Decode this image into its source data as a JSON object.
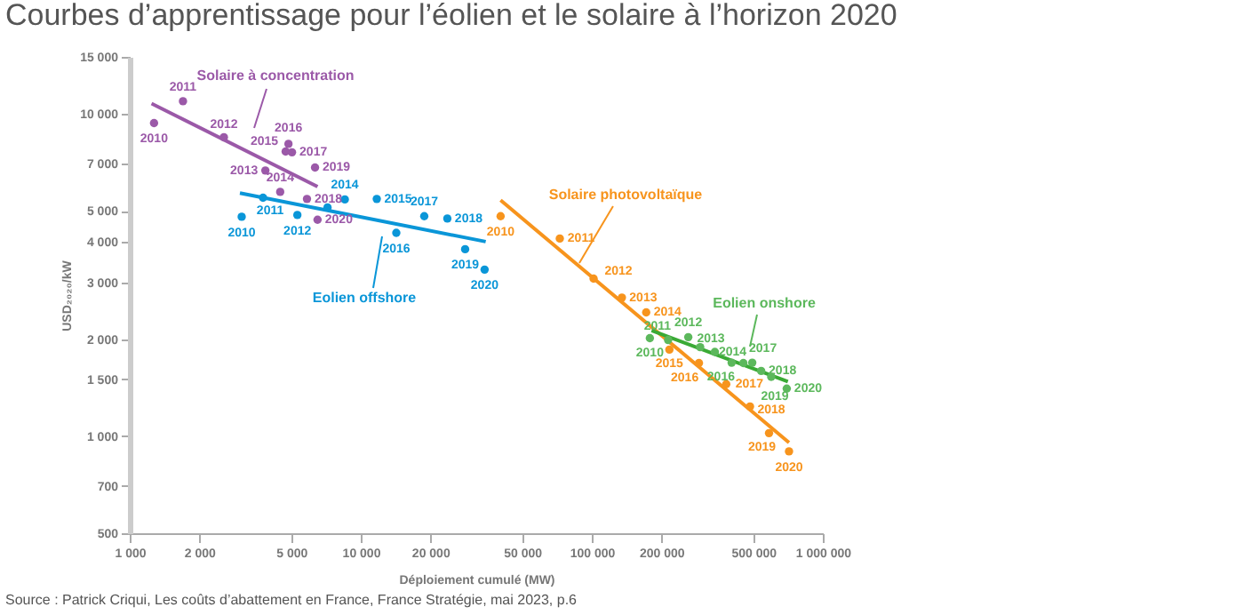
{
  "chart_data": {
    "type": "scatter",
    "title": "Courbes d’apprentissage pour l’éolien et le solaire à l’horizon 2020",
    "xlabel": "Déploiement cumulé (MW)",
    "ylabel": "USD₂₀₂₀/kW",
    "log": "xy",
    "grid": false,
    "marker": "circle",
    "xlim": [
      1000,
      1000000
    ],
    "xticks": [
      {
        "value": 1000,
        "label": "1 000"
      },
      {
        "value": 2000,
        "label": "2 000"
      },
      {
        "value": 5000,
        "label": "5 000"
      },
      {
        "value": 10000,
        "label": "10 000"
      },
      {
        "value": 20000,
        "label": "20 000"
      },
      {
        "value": 50000,
        "label": "50 000"
      },
      {
        "value": 100000,
        "label": "100 000"
      },
      {
        "value": 200000,
        "label": "200 000"
      },
      {
        "value": 500000,
        "label": "500 000"
      },
      {
        "value": 1000000,
        "label": "1 000 000"
      }
    ],
    "ylim": [
      500,
      15000
    ],
    "yticks": [
      500,
      700,
      {
        "value": 1000,
        "label": "1 000"
      },
      {
        "value": 1500,
        "label": "1 500"
      },
      {
        "value": 2000,
        "label": "2 000"
      },
      {
        "value": 3000,
        "label": "3 000"
      },
      {
        "value": 4000,
        "label": "4 000"
      },
      {
        "value": 5000,
        "label": "5 000"
      },
      {
        "value": 7000,
        "label": "7 000"
      },
      {
        "value": 10000,
        "label": "10 000"
      },
      {
        "value": 15000,
        "label": "15 000"
      }
    ],
    "series": [
      {
        "type": "line",
        "marker": "none",
        "color": "#9b59a8",
        "x": [
          1243,
          6500
        ],
        "values": [
          10750,
          5940
        ]
      },
      {
        "type": "line",
        "marker": "none",
        "color": "#0a96d8",
        "x": [
          2999,
          34740
        ],
        "values": [
          5670,
          4010
        ]
      },
      {
        "type": "line",
        "marker": "none",
        "color": "#f7941d",
        "x": [
          40300,
          714000
        ],
        "values": [
          5390,
          955
        ]
      },
      {
        "type": "line",
        "marker": "none",
        "color": "#3aaa35",
        "x": [
          181500,
          706000
        ],
        "values": [
          2126,
          1476
        ]
      },
      {
        "type": "scatter",
        "color": "#9b59a8",
        "x": [
          1274,
          1700,
          2556,
          3864,
          4480,
          4730,
          4865,
          5040,
          5850,
          6340,
          6500
        ],
        "values": [
          9350,
          10930,
          8450,
          6665,
          5720,
          7630,
          8060,
          7590,
          5440,
          6810,
          4690
        ]
      },
      {
        "type": "scatter",
        "color": "#0a96d8",
        "x": [
          3052,
          3776,
          5316,
          7180,
          8530,
          11730,
          14250,
          18830,
          23700,
          28300,
          34360
        ],
        "values": [
          4790,
          5485,
          4850,
          5120,
          5420,
          5440,
          4270,
          4810,
          4730,
          3800,
          3285
        ]
      },
      {
        "type": "scatter",
        "color": "#f7941d",
        "x": [
          40300,
          72700,
          101800,
          135000,
          172000,
          216700,
          291000,
          382000,
          484000,
          585000,
          714000
        ],
        "values": [
          4810,
          4100,
          3080,
          2690,
          2420,
          1855,
          1685,
          1450,
          1236,
          1022,
          897
        ]
      },
      {
        "type": "scatter",
        "color": "#5cb85c",
        "x": [
          178400,
          214000,
          261600,
          294600,
          341000,
          403000,
          453000,
          495000,
          541000,
          598000,
          698000
        ],
        "values": [
          2013,
          1987,
          2028,
          1888,
          1825,
          1690,
          1685,
          1690,
          1593,
          1528,
          1404
        ]
      }
    ],
    "annotations": [
      "Solaire à concentration",
      "Eolien offshore",
      {
        "text": "Solaire photovoltaïque",
        "x": 88300,
        "y": 3443
      },
      "Eolien onshore",
      "Source : Patrick Criqui, Les coûts d’abattement en France, France Stratégie, mai 2023, p.6",
      {
        "text": "2010",
        "x": 1274,
        "y": 9350
      },
      {
        "text": "2011",
        "x": 1700,
        "y": 10930
      },
      {
        "text": "2012",
        "x": 2556,
        "y": 8450
      },
      {
        "text": "2013",
        "x": 3864,
        "y": 6665
      },
      {
        "text": "2014",
        "x": 4480,
        "y": 5720
      },
      {
        "text": "2015",
        "x": 4730,
        "y": 7630
      },
      {
        "text": "2016",
        "x": 4865,
        "y": 8060
      },
      {
        "text": "2017",
        "x": 5040,
        "y": 7590
      },
      {
        "text": "2018",
        "x": 5850,
        "y": 5440
      },
      {
        "text": "2019",
        "x": 6340,
        "y": 6810
      },
      {
        "text": "2020",
        "x": 6500,
        "y": 4690
      },
      {
        "text": "2010",
        "x": 3052,
        "y": 4790
      },
      {
        "text": "2011",
        "x": 3776,
        "y": 5485
      },
      {
        "text": "2012",
        "x": 5316,
        "y": 4850
      },
      {
        "text": "2014",
        "x": 8530,
        "y": 5420
      },
      {
        "text": "2015",
        "x": 11730,
        "y": 5440
      },
      {
        "text": "2016",
        "x": 14250,
        "y": 4270
      },
      {
        "text": "2017",
        "x": 18830,
        "y": 4810
      },
      {
        "text": "2018",
        "x": 23700,
        "y": 4730
      },
      {
        "text": "2019",
        "x": 28300,
        "y": 3800
      },
      {
        "text": "2020",
        "x": 34360,
        "y": 3285
      },
      {
        "text": "2010",
        "x": 40300,
        "y": 4810
      },
      {
        "text": "2011",
        "x": 72700,
        "y": 4100
      },
      {
        "text": "2012",
        "x": 101800,
        "y": 3080
      },
      {
        "text": "2013",
        "x": 135000,
        "y": 2690
      },
      {
        "text": "2014",
        "x": 172000,
        "y": 2420
      },
      {
        "text": "2015",
        "x": 216700,
        "y": 1855
      },
      {
        "text": "2016",
        "x": 291000,
        "y": 1685
      },
      {
        "text": "2017",
        "x": 382000,
        "y": 1450
      },
      {
        "text": "2018",
        "x": 484000,
        "y": 1236
      },
      {
        "text": "2019",
        "x": 585000,
        "y": 1022
      },
      {
        "text": "2020",
        "x": 714000,
        "y": 897
      },
      {
        "text": "2010",
        "x": 178400,
        "y": 2013
      },
      {
        "text": "2011",
        "x": 214000,
        "y": 1987
      },
      {
        "text": "2012",
        "x": 261600,
        "y": 2028
      },
      {
        "text": "2013",
        "x": 294600,
        "y": 1888
      },
      {
        "text": "2014",
        "x": 341000,
        "y": 1825
      },
      {
        "text": "2016",
        "x": 403000,
        "y": 1690
      },
      {
        "text": "2017",
        "x": 495000,
        "y": 1690
      },
      {
        "text": "2018",
        "x": 541000,
        "y": 1593
      },
      {
        "text": "2019",
        "x": 598000,
        "y": 1528
      },
      {
        "text": "2020",
        "x": 698000,
        "y": 1404
      }
    ]
  }
}
